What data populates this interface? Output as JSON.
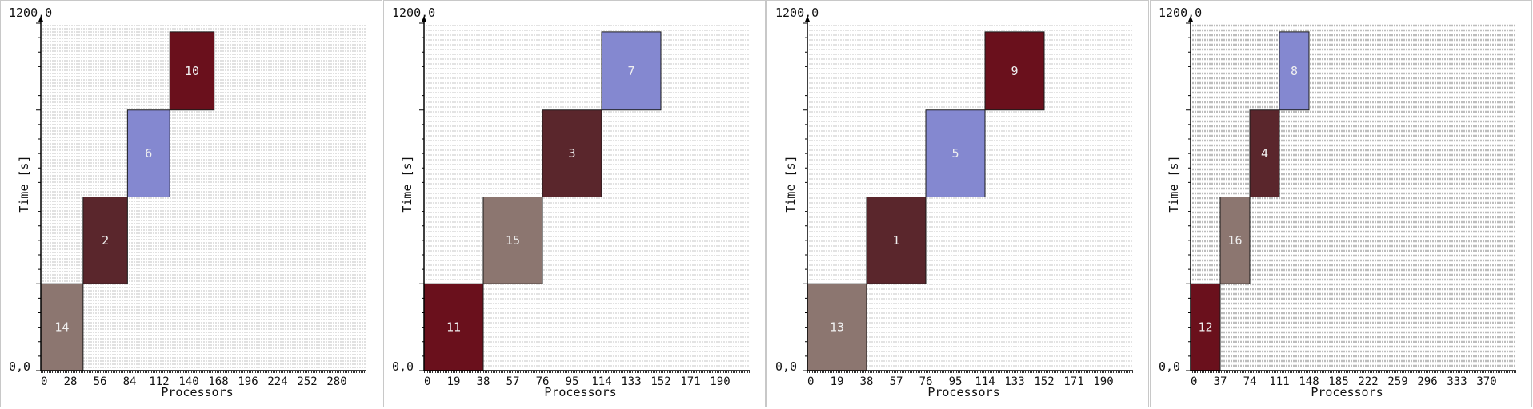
{
  "chart_data": [
    {
      "type": "gantt",
      "xlabel": "Processors",
      "ylabel": "Time [s]",
      "xticks": [
        "0",
        "28",
        "56",
        "84",
        "112",
        "140",
        "168",
        "196",
        "224",
        "252",
        "280"
      ],
      "ytick_top": "1200,0",
      "ytick_bottom": "0,0",
      "xlim": [
        0,
        308
      ],
      "ylim": [
        0,
        1200
      ],
      "jobs": [
        {
          "label": "14",
          "x0": 0,
          "x1": 40,
          "y0": 0,
          "y1": 300,
          "color": "#8c7670"
        },
        {
          "label": "2",
          "x0": 40,
          "x1": 82,
          "y0": 300,
          "y1": 600,
          "color": "#5a262c"
        },
        {
          "label": "6",
          "x0": 82,
          "x1": 122,
          "y0": 600,
          "y1": 900,
          "color": "#8488d0"
        },
        {
          "label": "10",
          "x0": 122,
          "x1": 164,
          "y0": 900,
          "y1": 1170,
          "color": "#6a101c"
        }
      ]
    },
    {
      "type": "gantt",
      "xlabel": "Processors",
      "ylabel": "Time [s]",
      "xticks": [
        "0",
        "19",
        "38",
        "57",
        "76",
        "95",
        "114",
        "133",
        "152",
        "171",
        "190"
      ],
      "ytick_top": "1200,0",
      "ytick_bottom": "0,0",
      "xlim": [
        0,
        209
      ],
      "ylim": [
        0,
        1200
      ],
      "jobs": [
        {
          "label": "11",
          "x0": 0,
          "x1": 38,
          "y0": 0,
          "y1": 300,
          "color": "#6a101c"
        },
        {
          "label": "15",
          "x0": 38,
          "x1": 76,
          "y0": 300,
          "y1": 600,
          "color": "#8c7670"
        },
        {
          "label": "3",
          "x0": 76,
          "x1": 114,
          "y0": 600,
          "y1": 900,
          "color": "#5a262c"
        },
        {
          "label": "7",
          "x0": 114,
          "x1": 152,
          "y0": 900,
          "y1": 1170,
          "color": "#8488d0"
        }
      ]
    },
    {
      "type": "gantt",
      "xlabel": "Processors",
      "ylabel": "Time [s]",
      "xticks": [
        "0",
        "19",
        "38",
        "57",
        "76",
        "95",
        "114",
        "133",
        "152",
        "171",
        "190"
      ],
      "ytick_top": "1200,0",
      "ytick_bottom": "0,0",
      "xlim": [
        0,
        209
      ],
      "ylim": [
        0,
        1200
      ],
      "jobs": [
        {
          "label": "13",
          "x0": 0,
          "x1": 38,
          "y0": 0,
          "y1": 300,
          "color": "#8c7670"
        },
        {
          "label": "1",
          "x0": 38,
          "x1": 76,
          "y0": 300,
          "y1": 600,
          "color": "#5a262c"
        },
        {
          "label": "5",
          "x0": 76,
          "x1": 114,
          "y0": 600,
          "y1": 900,
          "color": "#8488d0"
        },
        {
          "label": "9",
          "x0": 114,
          "x1": 152,
          "y0": 900,
          "y1": 1170,
          "color": "#6a101c"
        }
      ]
    },
    {
      "type": "gantt",
      "xlabel": "Processors",
      "ylabel": "Time [s]",
      "xticks": [
        "0",
        "37",
        "74",
        "111",
        "148",
        "185",
        "222",
        "259",
        "296",
        "333",
        "370"
      ],
      "ytick_top": "1200,0",
      "ytick_bottom": "0,0",
      "xlim": [
        0,
        407
      ],
      "ylim": [
        0,
        1200
      ],
      "jobs": [
        {
          "label": "12",
          "x0": 0,
          "x1": 37,
          "y0": 0,
          "y1": 300,
          "color": "#6a101c"
        },
        {
          "label": "16",
          "x0": 37,
          "x1": 74,
          "y0": 300,
          "y1": 600,
          "color": "#8c7670"
        },
        {
          "label": "4",
          "x0": 74,
          "x1": 111,
          "y0": 600,
          "y1": 900,
          "color": "#5a262c"
        },
        {
          "label": "8",
          "x0": 111,
          "x1": 148,
          "y0": 900,
          "y1": 1170,
          "color": "#8488d0"
        }
      ]
    }
  ]
}
